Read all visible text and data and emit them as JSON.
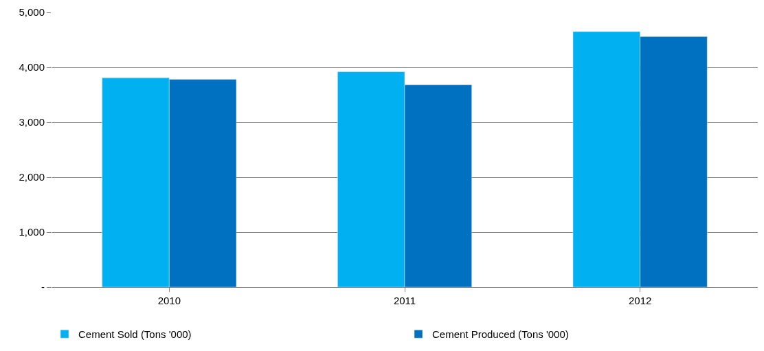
{
  "chart_data": {
    "type": "bar",
    "categories": [
      "2010",
      "2011",
      "2012"
    ],
    "series": [
      {
        "name": "Cement Sold (Tons '000)",
        "color": "#00b0f0",
        "values": [
          3810,
          3920,
          4650
        ]
      },
      {
        "name": "Cement Produced (Tons '000)",
        "color": "#0070c0",
        "values": [
          3780,
          3680,
          4560
        ]
      }
    ],
    "ylim": [
      0,
      5000
    ],
    "yticks": [
      {
        "value": 0,
        "label": "-"
      },
      {
        "value": 1000,
        "label": "1,000"
      },
      {
        "value": 2000,
        "label": "2,000"
      },
      {
        "value": 3000,
        "label": "3,000"
      },
      {
        "value": 4000,
        "label": "4,000"
      },
      {
        "value": 5000,
        "label": "5,000"
      }
    ],
    "grid": "y",
    "legend": "bottom"
  }
}
